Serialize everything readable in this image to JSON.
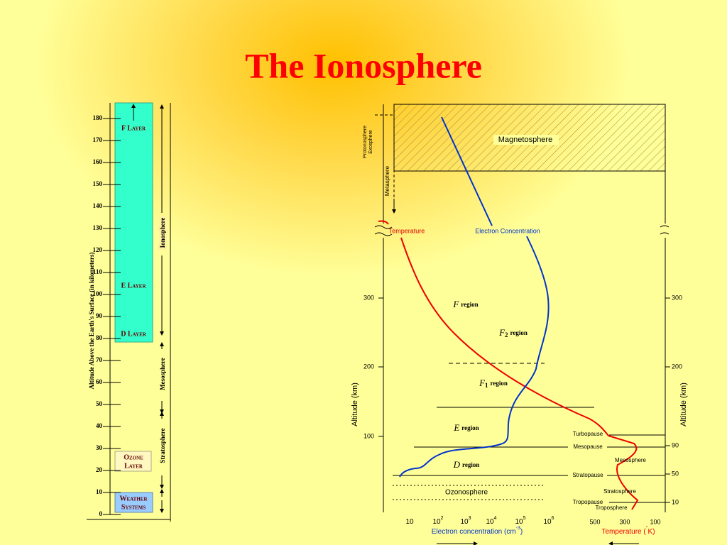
{
  "title": "The Ionosphere",
  "left": {
    "axis_label": "Altitude Above the Earth's Surface (in kilometers)",
    "ticks": [
      "0",
      "10",
      "20",
      "30",
      "40",
      "50",
      "60",
      "70",
      "80",
      "90",
      "100",
      "110",
      "120",
      "130",
      "140",
      "150",
      "160",
      "170",
      "180"
    ],
    "layers": [
      "F Layer",
      "E Layer",
      "D Layer"
    ],
    "ozone": [
      "Ozone",
      "Layer"
    ],
    "weather": [
      "Weather",
      "Systems"
    ],
    "regions": [
      "Ionosphere",
      "Mesosphere",
      "Stratosphere"
    ]
  },
  "right": {
    "upper": [
      "Protonosphere",
      "Exosphere",
      "Metasphere",
      "Magnetosphere"
    ],
    "curve_labels": [
      "Temperature",
      "Electron Concentration"
    ],
    "y_label": "Altitude (km)",
    "left_ticks": [
      "300",
      "200",
      "100"
    ],
    "right_ticks": [
      "300",
      "200",
      "90",
      "50",
      "10"
    ],
    "regions": [
      {
        "letter": "F",
        "sub": "",
        "word": "region"
      },
      {
        "letter": "F",
        "sub": "2",
        "word": "region"
      },
      {
        "letter": "F",
        "sub": "1",
        "word": "region"
      },
      {
        "letter": "E",
        "sub": "",
        "word": "region"
      },
      {
        "letter": "D",
        "sub": "",
        "word": "region"
      }
    ],
    "pauses": [
      "Turbopause",
      "Mesopause",
      "Stratopause",
      "Tropopause"
    ],
    "spheres": [
      "Mesosphere",
      "Stratosphere",
      "Troposphere",
      "Ozonosphere"
    ],
    "electron_ticks": [
      {
        "base": "10",
        "exp": ""
      },
      {
        "base": "10",
        "exp": "2"
      },
      {
        "base": "10",
        "exp": "3"
      },
      {
        "base": "10",
        "exp": "4"
      },
      {
        "base": "10",
        "exp": "5"
      },
      {
        "base": "10",
        "exp": "6"
      }
    ],
    "electron_label": {
      "text": "Electron concentration (cm",
      "exp": "-3",
      "end": ")"
    },
    "temp_ticks": [
      "500",
      "300",
      "100"
    ],
    "temp_label": {
      "text": "Temperature (",
      "exp": "°",
      "end": "K)"
    }
  }
}
